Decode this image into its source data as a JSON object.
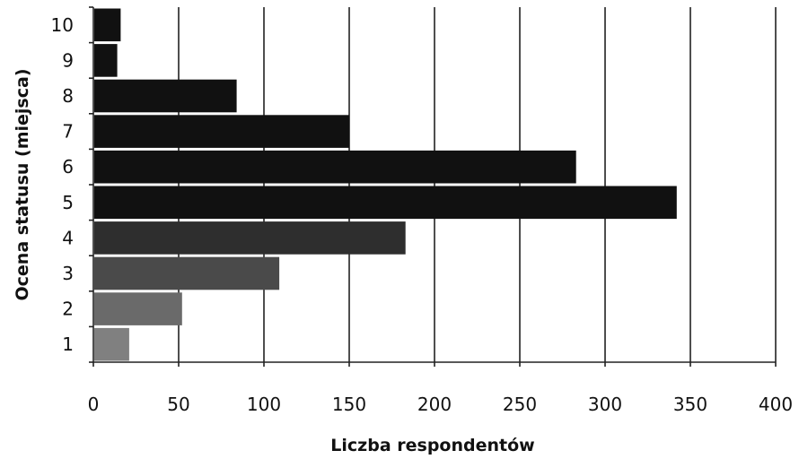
{
  "chart_data": {
    "type": "bar",
    "orientation": "horizontal",
    "title": "",
    "xlabel": "Liczba respondentów",
    "ylabel": "Ocena statusu (miejsca)",
    "categories": [
      "1",
      "2",
      "3",
      "4",
      "5",
      "6",
      "7",
      "8",
      "9",
      "10"
    ],
    "values": [
      21,
      52,
      109,
      183,
      342,
      283,
      150,
      84,
      14,
      16
    ],
    "bar_colors": [
      "#808080",
      "#6a6a6a",
      "#4a4a4a",
      "#2e2e2e",
      "#111111",
      "#111111",
      "#111111",
      "#111111",
      "#111111",
      "#111111"
    ],
    "xlim": [
      0,
      400
    ],
    "xticks": [
      0,
      50,
      100,
      150,
      200,
      250,
      300,
      350,
      400
    ],
    "grid": "vertical",
    "legend": "none"
  }
}
